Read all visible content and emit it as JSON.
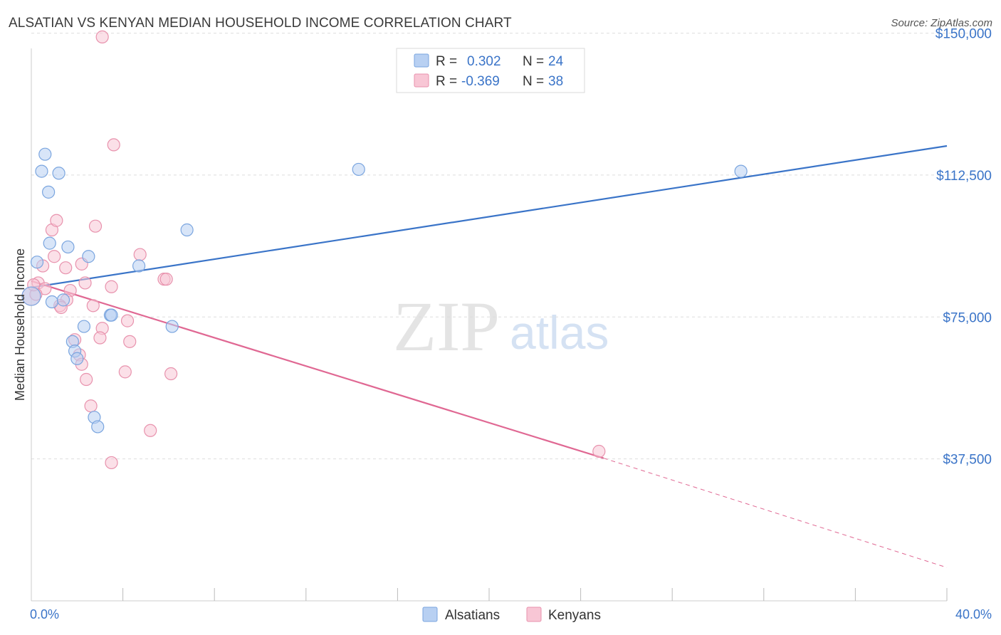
{
  "header": {
    "title": "ALSATIAN VS KENYAN MEDIAN HOUSEHOLD INCOME CORRELATION CHART",
    "source": "Source: ZipAtlas.com"
  },
  "watermark": {
    "zip": "ZIP",
    "atlas": "atlas"
  },
  "colors": {
    "alsatian_fill": "#b8d0f2",
    "alsatian_stroke": "#7aa5df",
    "alsatian_line": "#3a74c8",
    "kenyan_fill": "#f8c6d5",
    "kenyan_stroke": "#e892ad",
    "kenyan_line": "#e06893",
    "tick": "#3a74c8",
    "grid": "#dddddd"
  },
  "legend": {
    "rows": [
      {
        "r_label": "R =",
        "r_value": "0.302",
        "n_label": "N =",
        "n_value": "24"
      },
      {
        "r_label": "R =",
        "r_value": "-0.369",
        "n_label": "N =",
        "n_value": "38"
      }
    ]
  },
  "chart_data": {
    "type": "scatter",
    "title": "ALSATIAN VS KENYAN MEDIAN HOUSEHOLD INCOME CORRELATION CHART",
    "xlabel": "",
    "ylabel": "Median Household Income",
    "xlim": [
      0,
      40
    ],
    "ylim": [
      0,
      155000
    ],
    "x_tick_labels": [
      "0.0%",
      "40.0%"
    ],
    "y_ticks": [
      {
        "value": 37500,
        "label": "$37,500"
      },
      {
        "value": 75000,
        "label": "$75,000"
      },
      {
        "value": 112500,
        "label": "$112,500"
      },
      {
        "value": 150000,
        "label": "$150,000"
      }
    ],
    "series": [
      {
        "name": "Alsatians",
        "points": [
          [
            0.0,
            80500
          ],
          [
            0.25,
            89500
          ],
          [
            0.45,
            113500
          ],
          [
            0.6,
            118000
          ],
          [
            0.75,
            108000
          ],
          [
            0.8,
            94500
          ],
          [
            1.2,
            113000
          ],
          [
            0.9,
            79000
          ],
          [
            1.6,
            93500
          ],
          [
            1.4,
            79500
          ],
          [
            2.5,
            91000
          ],
          [
            2.3,
            72500
          ],
          [
            1.8,
            68500
          ],
          [
            1.9,
            66000
          ],
          [
            2.0,
            64000
          ],
          [
            3.45,
            75500
          ],
          [
            3.5,
            75500
          ],
          [
            4.7,
            88500
          ],
          [
            6.15,
            72500
          ],
          [
            6.8,
            98000
          ],
          [
            2.75,
            48500
          ],
          [
            2.9,
            46000
          ],
          [
            14.3,
            114000
          ],
          [
            31.0,
            113500
          ]
        ],
        "trend": {
          "x": [
            0,
            40
          ],
          "y": [
            82800,
            120200
          ]
        }
      },
      {
        "name": "Kenyans",
        "points": [
          [
            0.0,
            80500
          ],
          [
            0.3,
            84000
          ],
          [
            0.6,
            82500
          ],
          [
            0.5,
            88500
          ],
          [
            1.0,
            91000
          ],
          [
            0.9,
            98000
          ],
          [
            1.1,
            100500
          ],
          [
            1.5,
            88000
          ],
          [
            1.7,
            82000
          ],
          [
            1.55,
            79500
          ],
          [
            1.25,
            78000
          ],
          [
            2.2,
            89000
          ],
          [
            2.35,
            84000
          ],
          [
            2.7,
            78000
          ],
          [
            2.8,
            99000
          ],
          [
            3.1,
            72000
          ],
          [
            3.0,
            69500
          ],
          [
            3.5,
            83000
          ],
          [
            4.2,
            74000
          ],
          [
            4.3,
            68500
          ],
          [
            4.75,
            91500
          ],
          [
            5.8,
            85000
          ],
          [
            5.9,
            85000
          ],
          [
            1.9,
            69000
          ],
          [
            2.1,
            65000
          ],
          [
            2.2,
            62500
          ],
          [
            2.4,
            58500
          ],
          [
            2.6,
            51500
          ],
          [
            4.1,
            60500
          ],
          [
            6.1,
            60000
          ],
          [
            5.2,
            45000
          ],
          [
            3.5,
            36500
          ],
          [
            3.6,
            120500
          ],
          [
            3.1,
            149000
          ],
          [
            24.8,
            39500
          ],
          [
            0.2,
            81000
          ],
          [
            0.1,
            83500
          ],
          [
            1.3,
            77500
          ]
        ],
        "trend": {
          "x": [
            0,
            25
          ],
          "y": [
            84500,
            37700
          ]
        },
        "trend_extension": {
          "x": [
            25,
            40
          ],
          "y": [
            37700,
            8800
          ]
        }
      }
    ],
    "legend_position": "top-center",
    "legend_entries": [
      "Alsatians",
      "Kenyans"
    ]
  }
}
